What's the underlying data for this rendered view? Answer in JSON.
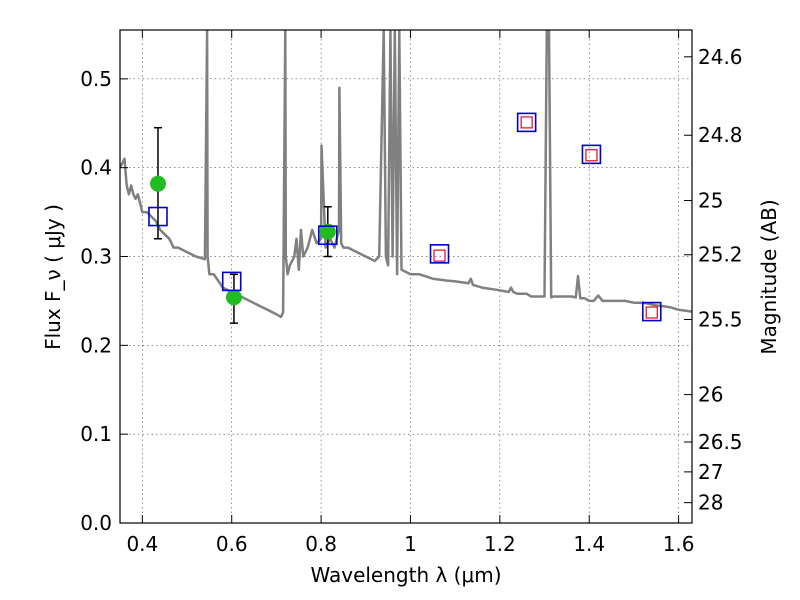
{
  "chart_data": {
    "type": "scatter",
    "title": "",
    "xlabel": "Wavelength λ (μm)",
    "ylabel": "Flux F_ν ( μJy )",
    "ylabel_right": "Magnitude (AB)",
    "xlim": [
      0.35,
      1.63
    ],
    "ylim": [
      0.0,
      0.555
    ],
    "grid": true,
    "x_ticks": [
      {
        "value": 0.4,
        "label": "0.4"
      },
      {
        "value": 0.6,
        "label": "0.6"
      },
      {
        "value": 0.8,
        "label": "0.8"
      },
      {
        "value": 1.0,
        "label": "1"
      },
      {
        "value": 1.2,
        "label": "1.2"
      },
      {
        "value": 1.4,
        "label": "1.4"
      },
      {
        "value": 1.6,
        "label": "1.6"
      }
    ],
    "y_ticks": [
      {
        "value": 0.0,
        "label": "0.0"
      },
      {
        "value": 0.1,
        "label": "0.1"
      },
      {
        "value": 0.2,
        "label": "0.2"
      },
      {
        "value": 0.3,
        "label": "0.3"
      },
      {
        "value": 0.4,
        "label": "0.4"
      },
      {
        "value": 0.5,
        "label": "0.5"
      }
    ],
    "right_ticks": [
      {
        "value": 24.6,
        "label": "24.6"
      },
      {
        "value": 24.8,
        "label": "24.8"
      },
      {
        "value": 25.0,
        "label": "25"
      },
      {
        "value": 25.2,
        "label": "25.2"
      },
      {
        "value": 25.5,
        "label": "25.5"
      },
      {
        "value": 26.0,
        "label": "26"
      },
      {
        "value": 26.5,
        "label": "26.5"
      },
      {
        "value": 27.0,
        "label": "27"
      },
      {
        "value": 28.0,
        "label": "28"
      }
    ],
    "series": [
      {
        "kind": "line",
        "color": "#808080",
        "x": [
          0.35,
          0.36,
          0.365,
          0.37,
          0.375,
          0.38,
          0.385,
          0.39,
          0.395,
          0.4,
          0.41,
          0.42,
          0.43,
          0.44,
          0.45,
          0.46,
          0.47,
          0.48,
          0.5,
          0.52,
          0.54,
          0.545,
          0.546,
          0.55,
          0.56,
          0.58,
          0.6,
          0.62,
          0.64,
          0.66,
          0.68,
          0.7,
          0.71,
          0.715,
          0.72,
          0.721,
          0.725,
          0.73,
          0.74,
          0.745,
          0.75,
          0.755,
          0.76,
          0.77,
          0.78,
          0.79,
          0.8,
          0.801,
          0.81,
          0.82,
          0.83,
          0.84,
          0.841,
          0.845,
          0.85,
          0.86,
          0.88,
          0.9,
          0.92,
          0.93,
          0.94,
          0.945,
          0.95,
          0.955,
          0.96,
          0.965,
          0.97,
          0.975,
          0.98,
          1.0,
          1.02,
          1.05,
          1.08,
          1.1,
          1.13,
          1.135,
          1.14,
          1.16,
          1.2,
          1.22,
          1.225,
          1.23,
          1.24,
          1.25,
          1.26,
          1.27,
          1.28,
          1.3,
          1.305,
          1.31,
          1.315,
          1.32,
          1.34,
          1.36,
          1.37,
          1.375,
          1.38,
          1.39,
          1.4,
          1.41,
          1.42,
          1.43,
          1.45,
          1.48,
          1.5,
          1.52,
          1.55,
          1.58,
          1.6,
          1.63
        ],
        "y": [
          0.4,
          0.41,
          0.38,
          0.37,
          0.38,
          0.37,
          0.365,
          0.37,
          0.36,
          0.35,
          0.35,
          0.345,
          0.34,
          0.33,
          0.325,
          0.32,
          0.31,
          0.31,
          0.305,
          0.3,
          0.297,
          0.555,
          0.3,
          0.28,
          0.28,
          0.265,
          0.26,
          0.255,
          0.25,
          0.245,
          0.24,
          0.235,
          0.232,
          0.237,
          0.555,
          0.3,
          0.28,
          0.29,
          0.3,
          0.32,
          0.285,
          0.33,
          0.3,
          0.31,
          0.33,
          0.315,
          0.32,
          0.425,
          0.31,
          0.32,
          0.31,
          0.33,
          0.49,
          0.315,
          0.31,
          0.31,
          0.305,
          0.3,
          0.295,
          0.3,
          0.555,
          0.3,
          0.29,
          0.555,
          0.3,
          0.555,
          0.28,
          0.555,
          0.285,
          0.28,
          0.28,
          0.275,
          0.273,
          0.272,
          0.27,
          0.275,
          0.268,
          0.265,
          0.262,
          0.26,
          0.265,
          0.26,
          0.258,
          0.258,
          0.258,
          0.255,
          0.255,
          0.255,
          0.555,
          0.555,
          0.254,
          0.255,
          0.255,
          0.255,
          0.254,
          0.278,
          0.253,
          0.253,
          0.25,
          0.25,
          0.256,
          0.25,
          0.25,
          0.25,
          0.248,
          0.248,
          0.245,
          0.243,
          0.24,
          0.238
        ]
      },
      {
        "kind": "points",
        "marker": "circle",
        "color": "#22bb22",
        "points": [
          {
            "x": 0.435,
            "y": 0.382,
            "yerr_low": 0.32,
            "yerr_high": 0.445
          },
          {
            "x": 0.605,
            "y": 0.254,
            "yerr_low": 0.225,
            "yerr_high": 0.28
          },
          {
            "x": 0.815,
            "y": 0.328,
            "yerr_low": 0.3,
            "yerr_high": 0.356
          }
        ]
      },
      {
        "kind": "points",
        "marker": "square",
        "color": "#0000cc",
        "points": [
          {
            "x": 0.435,
            "y": 0.345
          },
          {
            "x": 0.6,
            "y": 0.272
          },
          {
            "x": 0.815,
            "y": 0.324
          },
          {
            "x": 1.065,
            "y": 0.303
          },
          {
            "x": 1.26,
            "y": 0.451
          },
          {
            "x": 1.405,
            "y": 0.415
          },
          {
            "x": 1.54,
            "y": 0.238
          }
        ]
      },
      {
        "kind": "points",
        "marker": "small-square",
        "color": "#dd2222",
        "points": [
          {
            "x": 1.065,
            "y": 0.301
          },
          {
            "x": 1.26,
            "y": 0.451
          },
          {
            "x": 1.405,
            "y": 0.414
          },
          {
            "x": 1.54,
            "y": 0.237
          }
        ]
      }
    ]
  }
}
